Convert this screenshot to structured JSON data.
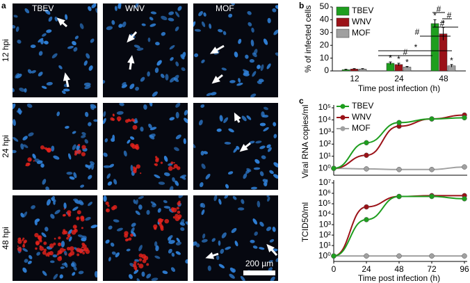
{
  "figure": {
    "panel_labels": [
      "a",
      "b",
      "c"
    ],
    "columns": [
      "TBEV",
      "WNV",
      "MOF"
    ],
    "rows": [
      "12 hpi",
      "24 hpi",
      "48 hpi"
    ],
    "scale_bar": "200 µm"
  },
  "chart_data": [
    {
      "type": "bar",
      "ylabel": "% of infected cells",
      "xlabel": "Time post infection (h)",
      "categories": [
        "12",
        "24",
        "48"
      ],
      "series": [
        {
          "name": "TBEV",
          "color": "#1e9e1e",
          "values": [
            1,
            6,
            37
          ],
          "errors": [
            0.3,
            1,
            3
          ]
        },
        {
          "name": "WNV",
          "color": "#9b1218",
          "values": [
            1.5,
            5,
            29
          ],
          "errors": [
            0.3,
            1,
            5
          ]
        },
        {
          "name": "MOF",
          "color": "#a0a0a0",
          "values": [
            1.5,
            3,
            4
          ],
          "errors": [
            0.3,
            0.5,
            1
          ]
        }
      ],
      "ylim": [
        0,
        50
      ],
      "yticks": [
        0,
        10,
        20,
        30,
        40,
        50
      ],
      "star": "*",
      "hash": "#",
      "legend": true
    },
    {
      "type": "line",
      "ylabel": "Viral RNA copies/ml",
      "log_y": true,
      "x": [
        0,
        24,
        48,
        72,
        96
      ],
      "series": [
        {
          "name": "TBEV",
          "color": "#1e9e1e",
          "values": [
            1,
            130,
            6000,
            12000,
            15000
          ]
        },
        {
          "name": "WNV",
          "color": "#9b1218",
          "values": [
            1,
            12,
            3000,
            12000,
            25000
          ]
        },
        {
          "name": "MOF",
          "color": "#a0a0a0",
          "values": [
            1,
            0.9,
            0.8,
            0.8,
            1.3
          ]
        }
      ],
      "xlim": [
        0,
        96
      ],
      "ylim": [
        0.27,
        100000
      ],
      "yticks": [
        {
          "value": 1,
          "label": "10⁰"
        },
        {
          "value": 10,
          "label": "10¹"
        },
        {
          "value": 100,
          "label": "10²"
        },
        {
          "value": 1000,
          "label": "10³"
        },
        {
          "value": 10000,
          "label": "10⁴"
        },
        {
          "value": 100000,
          "label": "10⁵"
        }
      ],
      "legend": true
    },
    {
      "type": "line",
      "ylabel": "TCID50/ml",
      "xlabel": "Time post infection (h)",
      "log_y": true,
      "x": [
        0,
        24,
        48,
        72,
        96
      ],
      "series": [
        {
          "name": "TBEV",
          "color": "#1e9e1e",
          "values": [
            1,
            3000,
            500000,
            500000,
            300000
          ]
        },
        {
          "name": "WNV",
          "color": "#9b1218",
          "values": [
            1,
            50000,
            500000,
            600000,
            600000
          ]
        },
        {
          "name": "MOF",
          "color": "#a0a0a0",
          "values": [
            1,
            1,
            1,
            1,
            1
          ]
        }
      ],
      "xlim": [
        0,
        96
      ],
      "ylim": [
        0.3,
        10000000
      ],
      "xticks": [
        0,
        24,
        48,
        72,
        96
      ],
      "yticks": [
        {
          "value": 1,
          "label": "10⁰"
        },
        {
          "value": 10,
          "label": "10¹"
        },
        {
          "value": 100,
          "label": "10²"
        },
        {
          "value": 1000,
          "label": "10³"
        },
        {
          "value": 10000,
          "label": "10⁴"
        },
        {
          "value": 100000,
          "label": "10⁵"
        },
        {
          "value": 1000000,
          "label": "10⁶"
        },
        {
          "value": 10000000,
          "label": "10⁷"
        }
      ],
      "legend": false
    }
  ]
}
